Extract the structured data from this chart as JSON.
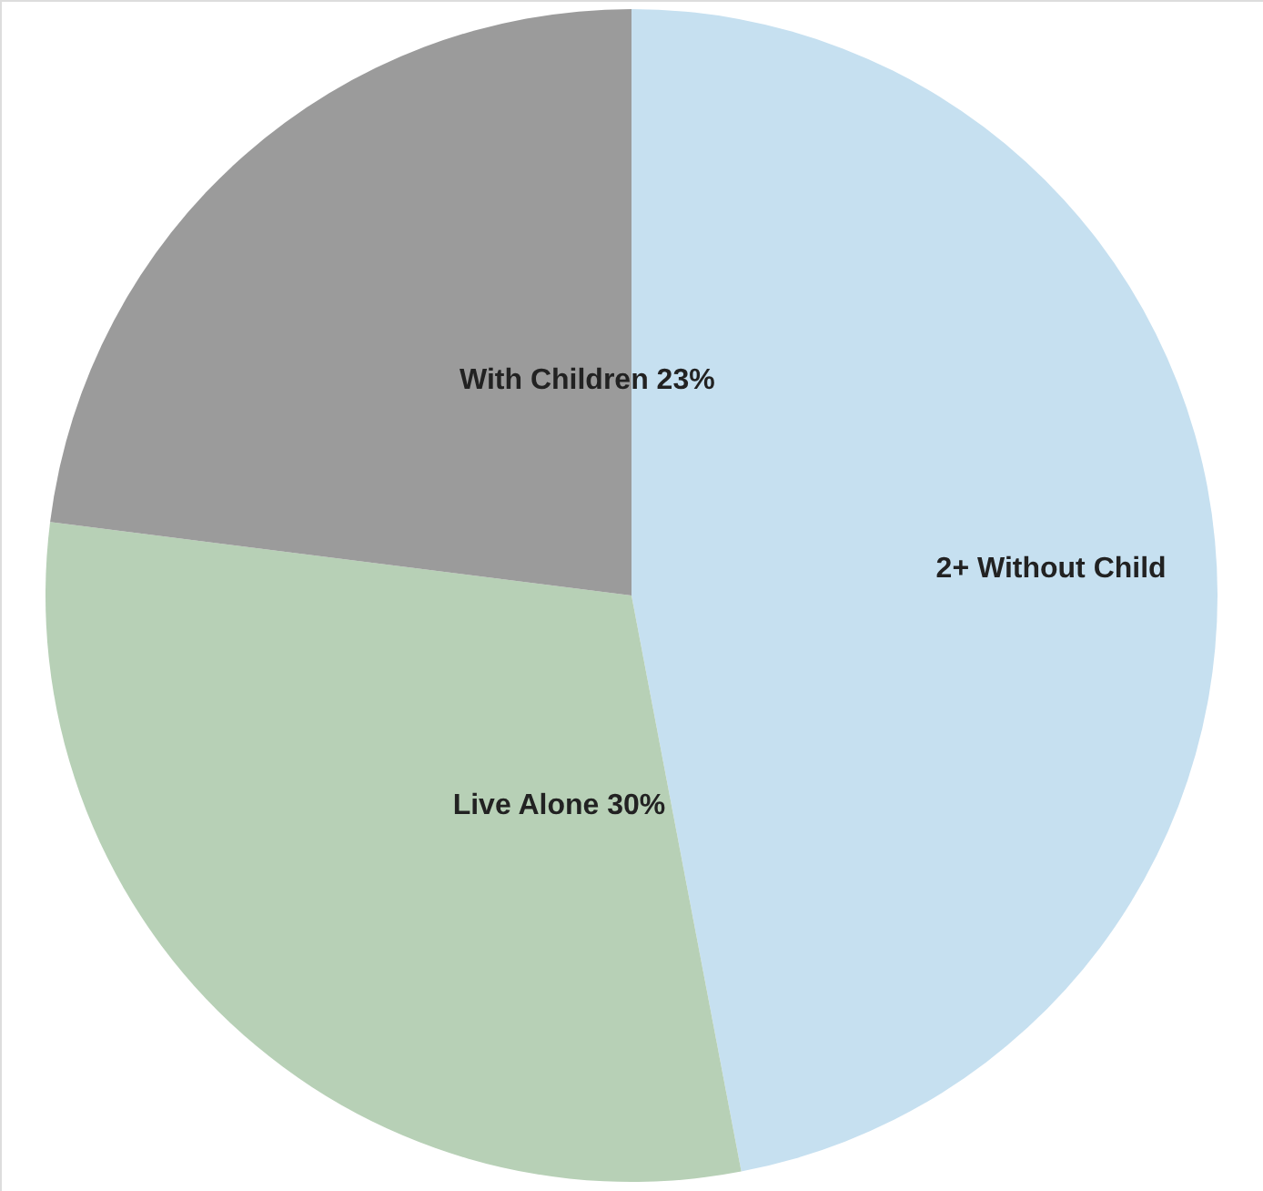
{
  "chart_data": {
    "type": "pie",
    "categories": [
      "2+ Without Child",
      "Live Alone",
      "With Children"
    ],
    "values": [
      47,
      30,
      23
    ],
    "colors": [
      "#c6e0f0",
      "#b7d0b6",
      "#9b9b9b"
    ],
    "value_labels": [
      null,
      "30%",
      "23%"
    ]
  }
}
